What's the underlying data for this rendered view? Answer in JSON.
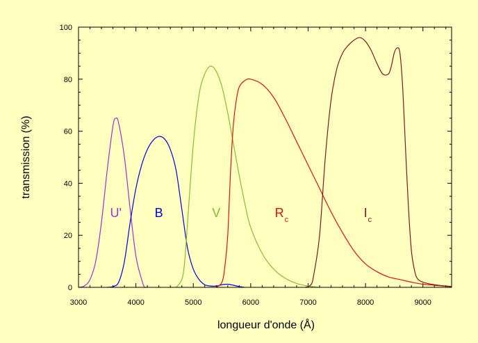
{
  "chart_data": {
    "type": "line",
    "title": "",
    "xlabel": "longueur d'onde (Å)",
    "ylabel": "transmission (%)",
    "xlim": [
      3000,
      9500
    ],
    "ylim": [
      0,
      100
    ],
    "x_ticks": [
      3000,
      4000,
      5000,
      6000,
      7000,
      8000,
      9000
    ],
    "y_ticks": [
      0,
      20,
      40,
      60,
      80,
      100
    ],
    "grid": false,
    "series": [
      {
        "name": "U'",
        "color": "#9933cc",
        "points": [
          [
            3000,
            0
          ],
          [
            3100,
            0.5
          ],
          [
            3200,
            3
          ],
          [
            3300,
            10
          ],
          [
            3400,
            25
          ],
          [
            3500,
            45
          ],
          [
            3600,
            62
          ],
          [
            3650,
            65
          ],
          [
            3700,
            63
          ],
          [
            3800,
            50
          ],
          [
            3900,
            30
          ],
          [
            4000,
            12
          ],
          [
            4100,
            3
          ],
          [
            4150,
            0
          ],
          [
            4200,
            0
          ]
        ]
      },
      {
        "name": "B",
        "color": "#0000dd",
        "points": [
          [
            3500,
            0
          ],
          [
            3600,
            0.3
          ],
          [
            3700,
            2
          ],
          [
            3800,
            10
          ],
          [
            3900,
            25
          ],
          [
            4000,
            38
          ],
          [
            4100,
            47
          ],
          [
            4200,
            53
          ],
          [
            4300,
            56.5
          ],
          [
            4400,
            58
          ],
          [
            4500,
            57
          ],
          [
            4600,
            53
          ],
          [
            4700,
            45
          ],
          [
            4800,
            30
          ],
          [
            4900,
            15
          ],
          [
            5000,
            7
          ],
          [
            5100,
            3
          ],
          [
            5200,
            1
          ],
          [
            5300,
            0.5
          ],
          [
            5400,
            0.5
          ],
          [
            5500,
            1
          ],
          [
            5600,
            1.2
          ],
          [
            5700,
            0.8
          ],
          [
            5800,
            0.3
          ],
          [
            5900,
            0
          ]
        ]
      },
      {
        "name": "V",
        "color": "#88bb33",
        "points": [
          [
            4700,
            0
          ],
          [
            4800,
            3
          ],
          [
            4850,
            10
          ],
          [
            4900,
            25
          ],
          [
            5000,
            55
          ],
          [
            5100,
            74
          ],
          [
            5200,
            82
          ],
          [
            5300,
            85
          ],
          [
            5400,
            83
          ],
          [
            5500,
            77
          ],
          [
            5600,
            67
          ],
          [
            5700,
            55
          ],
          [
            5800,
            43
          ],
          [
            5900,
            32
          ],
          [
            6000,
            23
          ],
          [
            6200,
            13
          ],
          [
            6400,
            7
          ],
          [
            6600,
            3.5
          ],
          [
            6800,
            1.5
          ],
          [
            7000,
            0.5
          ],
          [
            7200,
            0
          ]
        ]
      },
      {
        "name": "Rc",
        "color": "#dd1111",
        "points": [
          [
            5400,
            0
          ],
          [
            5500,
            2
          ],
          [
            5550,
            8
          ],
          [
            5600,
            20
          ],
          [
            5650,
            45
          ],
          [
            5700,
            63
          ],
          [
            5750,
            72
          ],
          [
            5800,
            77
          ],
          [
            5900,
            79.5
          ],
          [
            6000,
            80
          ],
          [
            6200,
            78
          ],
          [
            6400,
            73
          ],
          [
            6600,
            65
          ],
          [
            6800,
            56
          ],
          [
            7000,
            47
          ],
          [
            7200,
            38
          ],
          [
            7400,
            29
          ],
          [
            7600,
            21
          ],
          [
            7800,
            14
          ],
          [
            8000,
            9
          ],
          [
            8200,
            6
          ],
          [
            8400,
            4
          ],
          [
            8600,
            3
          ],
          [
            8800,
            2
          ],
          [
            9000,
            1.2
          ],
          [
            9200,
            0.8
          ],
          [
            9400,
            0.4
          ],
          [
            9500,
            0.3
          ]
        ]
      },
      {
        "name": "Ic",
        "color": "#7a1a1a",
        "points": [
          [
            6950,
            0
          ],
          [
            7050,
            1
          ],
          [
            7100,
            5
          ],
          [
            7200,
            20
          ],
          [
            7300,
            50
          ],
          [
            7400,
            72
          ],
          [
            7500,
            84
          ],
          [
            7600,
            90
          ],
          [
            7700,
            93
          ],
          [
            7800,
            95
          ],
          [
            7900,
            96
          ],
          [
            8000,
            94.5
          ],
          [
            8100,
            91
          ],
          [
            8200,
            86
          ],
          [
            8300,
            82
          ],
          [
            8400,
            82
          ],
          [
            8450,
            85
          ],
          [
            8500,
            90
          ],
          [
            8550,
            92
          ],
          [
            8600,
            90
          ],
          [
            8650,
            76
          ],
          [
            8700,
            52
          ],
          [
            8750,
            30
          ],
          [
            8800,
            14
          ],
          [
            8850,
            7
          ],
          [
            8900,
            3.5
          ],
          [
            9000,
            2
          ],
          [
            9200,
            1
          ],
          [
            9400,
            0.5
          ],
          [
            9500,
            0.3
          ]
        ]
      }
    ],
    "annotations": [
      {
        "text": "U'",
        "x": 3650,
        "y": 27,
        "color": "#9933cc"
      },
      {
        "text": "B",
        "x": 4400,
        "y": 27,
        "color": "#0000dd"
      },
      {
        "text": "V",
        "x": 5400,
        "y": 27,
        "color": "#88bb33"
      },
      {
        "text": "R",
        "sub": "c",
        "x": 6500,
        "y": 27,
        "color": "#dd1111"
      },
      {
        "text": "I",
        "sub": "c",
        "x": 8000,
        "y": 27,
        "color": "#7a1a1a"
      }
    ]
  }
}
